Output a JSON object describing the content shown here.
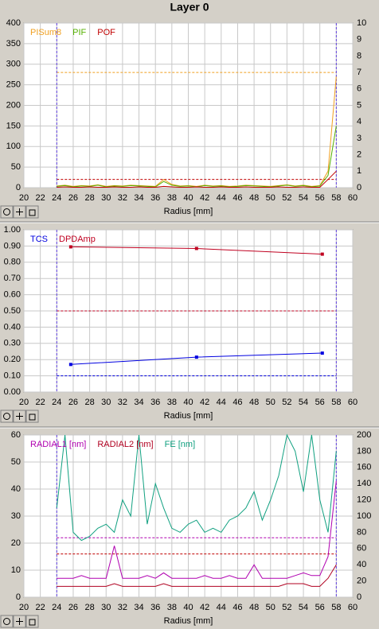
{
  "title": "Layer 0",
  "chart_data": [
    {
      "type": "line",
      "xlabel": "Radius [mm]",
      "grid": true,
      "legend": "upper left",
      "xlim": [
        20,
        60
      ],
      "xticks": [
        20,
        22,
        24,
        26,
        28,
        30,
        32,
        34,
        36,
        38,
        40,
        42,
        44,
        46,
        48,
        50,
        52,
        54,
        56,
        58,
        60
      ],
      "ylim": [
        0,
        400
      ],
      "yticks": [
        0,
        50,
        100,
        150,
        200,
        250,
        300,
        350,
        400
      ],
      "y2lim": [
        0,
        10
      ],
      "y2ticks": [
        0,
        1,
        2,
        3,
        4,
        5,
        6,
        7,
        8,
        9,
        10
      ],
      "x": [
        24,
        25,
        26,
        27,
        28,
        29,
        30,
        31,
        32,
        33,
        34,
        35,
        36,
        37,
        38,
        39,
        40,
        41,
        42,
        43,
        44,
        45,
        46,
        47,
        48,
        49,
        50,
        51,
        52,
        53,
        54,
        55,
        56,
        57,
        58
      ],
      "series": [
        {
          "name": "PISum8",
          "color": "#f0a020",
          "values": [
            4,
            6,
            3,
            5,
            4,
            7,
            3,
            5,
            4,
            6,
            5,
            4,
            3,
            20,
            8,
            4,
            5,
            3,
            6,
            4,
            5,
            3,
            4,
            6,
            5,
            4,
            3,
            5,
            7,
            4,
            6,
            3,
            5,
            40,
            270
          ]
        },
        {
          "name": "PIF",
          "color": "#55b000",
          "values": [
            3,
            5,
            2,
            4,
            3,
            6,
            2,
            4,
            3,
            5,
            4,
            3,
            2,
            15,
            6,
            3,
            4,
            2,
            5,
            3,
            4,
            2,
            3,
            5,
            4,
            3,
            2,
            4,
            6,
            3,
            5,
            2,
            4,
            30,
            150
          ]
        },
        {
          "name": "POF",
          "color": "#c00000",
          "values": [
            1,
            2,
            1,
            1,
            2,
            1,
            1,
            2,
            1,
            1,
            2,
            1,
            1,
            3,
            2,
            1,
            1,
            2,
            1,
            1,
            2,
            1,
            1,
            2,
            1,
            1,
            1,
            2,
            1,
            1,
            2,
            1,
            1,
            20,
            40
          ]
        }
      ],
      "hlines": [
        {
          "value": 280,
          "color": "#f0a020"
        },
        {
          "value": 20,
          "color": "#c00000"
        }
      ],
      "vlines": [
        {
          "value": 24,
          "color": "#6040e0"
        },
        {
          "value": 58,
          "color": "#6040e0"
        }
      ]
    },
    {
      "type": "line",
      "xlabel": "Radius [mm]",
      "grid": true,
      "legend": "upper left",
      "markers": true,
      "xlim": [
        20,
        60
      ],
      "xticks": [
        20,
        22,
        24,
        26,
        28,
        30,
        32,
        34,
        36,
        38,
        40,
        42,
        44,
        46,
        48,
        50,
        52,
        54,
        56,
        58,
        60
      ],
      "ylim": [
        0,
        1
      ],
      "yticks": [
        {
          "value": 0,
          "label": "0.00"
        },
        {
          "value": 0.1,
          "label": "0.10"
        },
        {
          "value": 0.2,
          "label": "0.20"
        },
        {
          "value": 0.3,
          "label": "0.30"
        },
        {
          "value": 0.4,
          "label": "0.40"
        },
        {
          "value": 0.5,
          "label": "0.50"
        },
        {
          "value": 0.6,
          "label": "0.60"
        },
        {
          "value": 0.7,
          "label": "0.70"
        },
        {
          "value": 0.8,
          "label": "0.80"
        },
        {
          "value": 0.9,
          "label": "0.90"
        },
        {
          "value": 1,
          "label": "1.00"
        }
      ],
      "x": [
        25.7,
        41,
        56.3
      ],
      "series": [
        {
          "name": "TCS",
          "color": "#0000e0",
          "values": [
            0.17,
            0.215,
            0.24
          ]
        },
        {
          "name": "DPDAmp",
          "color": "#c00020",
          "values": [
            0.895,
            0.885,
            0.85
          ]
        }
      ],
      "hlines": [
        {
          "value": 0.5,
          "color": "#c00020"
        },
        {
          "value": 0.1,
          "color": "#0000e0"
        }
      ],
      "vlines": [
        {
          "value": 24,
          "color": "#6040e0"
        },
        {
          "value": 58,
          "color": "#6040e0"
        }
      ]
    },
    {
      "type": "line",
      "xlabel": "Radius [mm]",
      "grid": true,
      "legend": "upper left",
      "xlim": [
        20,
        60
      ],
      "xticks": [
        20,
        22,
        24,
        26,
        28,
        30,
        32,
        34,
        36,
        38,
        40,
        42,
        44,
        46,
        48,
        50,
        52,
        54,
        56,
        58,
        60
      ],
      "ylim": [
        0,
        60
      ],
      "yticks": [
        0,
        10,
        20,
        30,
        40,
        50,
        60
      ],
      "y2lim": [
        0,
        200
      ],
      "y2ticks": [
        0,
        20,
        40,
        60,
        80,
        100,
        120,
        140,
        160,
        180,
        200
      ],
      "x": [
        24,
        25,
        26,
        27,
        28,
        29,
        30,
        31,
        32,
        33,
        34,
        35,
        36,
        37,
        38,
        39,
        40,
        41,
        42,
        43,
        44,
        45,
        46,
        47,
        48,
        49,
        50,
        51,
        52,
        53,
        54,
        55,
        56,
        57,
        58
      ],
      "series": [
        {
          "name": "RADIAL1 [nm]",
          "color": "#b000b0",
          "values": [
            7,
            7,
            7,
            8,
            7,
            7,
            7,
            19,
            7,
            7,
            7,
            8,
            7,
            9,
            7,
            7,
            7,
            7,
            8,
            7,
            7,
            8,
            7,
            7,
            12,
            7,
            7,
            7,
            7,
            8,
            9,
            8,
            8,
            15,
            43
          ]
        },
        {
          "name": "RADIAL2 [nm]",
          "color": "#b00020",
          "values": [
            4,
            4,
            4,
            4,
            4,
            4,
            4,
            5,
            4,
            4,
            4,
            4,
            4,
            5,
            4,
            4,
            4,
            4,
            4,
            4,
            4,
            4,
            4,
            4,
            4,
            4,
            4,
            4,
            5,
            5,
            5,
            4,
            4,
            7,
            12
          ]
        },
        {
          "name": "FE [nm]",
          "color": "#10a080",
          "axis": "y2",
          "values": [
            110,
            200,
            80,
            70,
            75,
            85,
            90,
            80,
            120,
            100,
            200,
            90,
            140,
            110,
            85,
            80,
            90,
            95,
            80,
            85,
            80,
            95,
            100,
            110,
            130,
            95,
            120,
            150,
            200,
            180,
            130,
            200,
            120,
            80,
            180
          ]
        }
      ],
      "hlines": [
        {
          "value": 22,
          "color": "#b000b0"
        },
        {
          "value": 16,
          "color": "#c00000"
        }
      ],
      "vlines": [
        {
          "value": 24,
          "color": "#6040e0"
        },
        {
          "value": 58,
          "color": "#6040e0"
        }
      ]
    }
  ]
}
